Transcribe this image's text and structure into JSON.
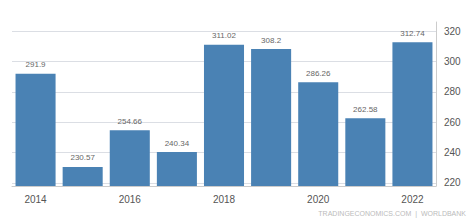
{
  "chart_data": {
    "type": "bar",
    "categories": [
      "2014",
      null,
      "2016",
      null,
      "2018",
      null,
      "2020",
      null,
      "2022"
    ],
    "values": [
      291.9,
      230.57,
      254.66,
      240.34,
      311.02,
      308.2,
      286.26,
      262.58,
      312.74
    ],
    "color": "#4a82b4",
    "ylim": [
      218,
      326
    ],
    "yticks": [
      220,
      240,
      260,
      280,
      300,
      320
    ],
    "grid": true,
    "data_labels": true,
    "annotations": [
      "TRADINGECONOMICS.COM  |  WORLDBANK"
    ]
  }
}
